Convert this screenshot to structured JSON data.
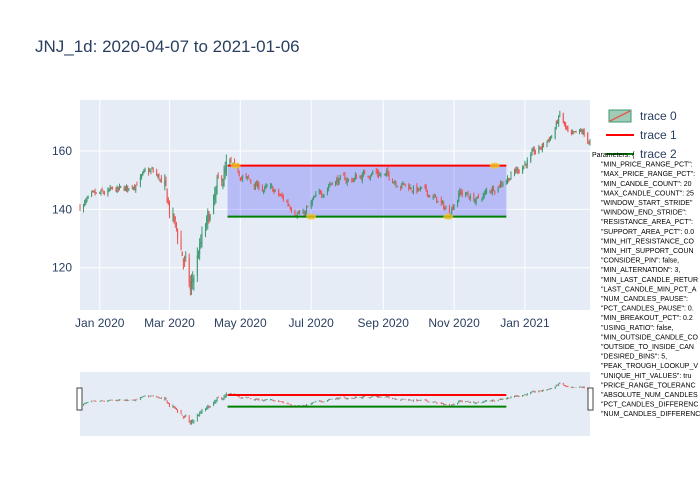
{
  "chart_data": {
    "type": "candlestick",
    "title": "JNJ_1d: 2020-04-07 to 2021-01-06",
    "x_tick_labels": [
      "Jan 2020",
      "Mar 2020",
      "May 2020",
      "Jul 2020",
      "Sep 2020",
      "Nov 2020",
      "Jan 2021"
    ],
    "x_tick_days": [
      0,
      60,
      121,
      182,
      244,
      305,
      366
    ],
    "x_range_days": [
      -17,
      422
    ],
    "y_tick_labels": [
      "120",
      "140",
      "160"
    ],
    "y_ticks": [
      120,
      140,
      160
    ],
    "ylim": [
      105.5,
      177.5
    ],
    "increasing_color": "#3d9970",
    "decreasing_color": "#ef5350",
    "price_path_anchors": [
      {
        "day": -17,
        "close": 141
      },
      {
        "day": -5,
        "close": 144
      },
      {
        "day": 10,
        "close": 146
      },
      {
        "day": 25,
        "close": 147
      },
      {
        "day": 35,
        "close": 151
      },
      {
        "day": 45,
        "close": 153
      },
      {
        "day": 52,
        "close": 150
      },
      {
        "day": 60,
        "close": 140
      },
      {
        "day": 68,
        "close": 130
      },
      {
        "day": 75,
        "close": 118
      },
      {
        "day": 78,
        "close": 111
      },
      {
        "day": 85,
        "close": 125
      },
      {
        "day": 95,
        "close": 137
      },
      {
        "day": 105,
        "close": 150
      },
      {
        "day": 112,
        "close": 155
      },
      {
        "day": 120,
        "close": 152
      },
      {
        "day": 135,
        "close": 148
      },
      {
        "day": 150,
        "close": 146
      },
      {
        "day": 165,
        "close": 141
      },
      {
        "day": 175,
        "close": 138
      },
      {
        "day": 185,
        "close": 143
      },
      {
        "day": 200,
        "close": 150
      },
      {
        "day": 215,
        "close": 150
      },
      {
        "day": 235,
        "close": 153
      },
      {
        "day": 250,
        "close": 151
      },
      {
        "day": 265,
        "close": 148
      },
      {
        "day": 285,
        "close": 145
      },
      {
        "day": 300,
        "close": 139
      },
      {
        "day": 310,
        "close": 146
      },
      {
        "day": 325,
        "close": 143
      },
      {
        "day": 340,
        "close": 148
      },
      {
        "day": 355,
        "close": 152
      },
      {
        "day": 366,
        "close": 156
      },
      {
        "day": 380,
        "close": 161
      },
      {
        "day": 390,
        "close": 166
      },
      {
        "day": 396,
        "close": 172
      },
      {
        "day": 405,
        "close": 164
      },
      {
        "day": 415,
        "close": 166
      },
      {
        "day": 422,
        "close": 163
      }
    ],
    "resistance_line": {
      "name": "trace 1",
      "value": 155,
      "x_range_days": [
        110,
        350
      ],
      "color": "#ff0000"
    },
    "support_line": {
      "name": "trace 2",
      "value": 137.5,
      "x_range_days": [
        110,
        350
      ],
      "color": "#008000"
    },
    "pattern_area": {
      "x_range_days": [
        110,
        350
      ],
      "y_range": [
        137.5,
        155
      ],
      "color": "rgba(0,0,255,0.2)"
    },
    "marker_points": [
      {
        "day": 117,
        "price": 155
      },
      {
        "day": 182,
        "price": 137.5
      },
      {
        "day": 300,
        "price": 137.5
      },
      {
        "day": 340,
        "price": 155
      }
    ],
    "legend": [
      {
        "label": "trace 0",
        "kind": "candle"
      },
      {
        "label": "trace 1",
        "kind": "line",
        "color": "#ff0000"
      },
      {
        "label": "trace 2",
        "kind": "line",
        "color": "#008000"
      }
    ],
    "parameters_text": [
      "Parameters: {",
      "\"MIN_PRICE_RANGE_PCT\":",
      "\"MAX_PRICE_RANGE_PCT\":",
      "\"MIN_CANDLE_COUNT\": 20",
      "\"MAX_CANDLE_COUNT\": 25",
      "\"WINDOW_START_STRIDE\"",
      "\"WINDOW_END_STRIDE\":",
      "\"RESISTANCE_AREA_PCT\":",
      "\"SUPPORT_AREA_PCT\": 0.0",
      "\"MIN_HIT_RESISTANCE_CO",
      "\"MIN_HIT_SUPPORT_COUN",
      "\"CONSIDER_PIN\": false,",
      "\"MIN_ALTERNATION\": 3,",
      "\"MIN_LAST_CANDLE_RETUR",
      "\"LAST_CANDLE_MIN_PCT_A",
      "\"NUM_CANDLES_PAUSE\":",
      "\"PCT_CANDLES_PAUSE\": 0.",
      "\"MIN_BREAKOUT_PCT\": 0.2",
      "\"USING_RATIO\": false,",
      "\"MIN_OUTSIDE_CANDLE_CO",
      "\"OUTSIDE_TO_INSIDE_CAN",
      "\"DESIRED_BINS\": 5,",
      "\"PEAK_TROUGH_LOOKUP_V",
      "\"UNIQUE_HIT_VALUES\": tru",
      "\"PRICE_RANGE_TOLERANC",
      "\"ABSOLUTE_NUM_CANDLES",
      "\"PCT_CANDLES_DIFFERENC",
      "\"NUM_CANDLES_DIFFERENC"
    ]
  }
}
